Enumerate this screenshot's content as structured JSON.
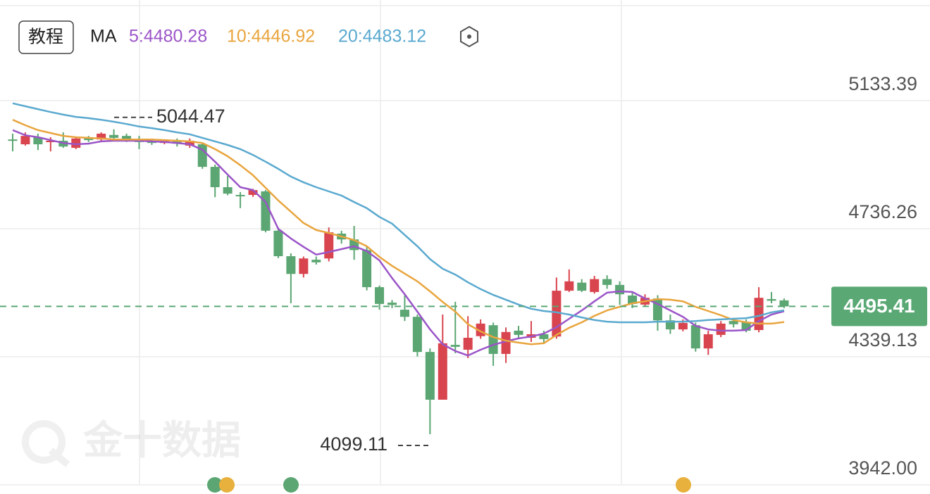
{
  "chart_data": {
    "type": "candlestick",
    "button": "教程",
    "ma_title": "MA",
    "watermark": "金十数据",
    "ylim": [
      3942,
      5445.4
    ],
    "yticks": [
      5133.39,
      4736.26,
      4339.13,
      {
        "value": 3942,
        "label": "3942.00"
      }
    ],
    "grid": true,
    "up_color": "#d9454f",
    "down_color": "#5ba672",
    "last_price": 4495.41,
    "last_price_color": "#5aa874",
    "max_label": 5044.47,
    "min_label": 4099.11,
    "open": [
      5013,
      4998,
      5020,
      5005,
      5009,
      4987,
      5016,
      5013,
      5027,
      5024,
      5011,
      5007,
      5002,
      5007,
      4994,
      4998,
      4928,
      4865,
      4841,
      4841,
      4852,
      4730,
      4651,
      4596,
      4640,
      4644,
      4721,
      4703,
      4670,
      4555,
      4507,
      4485,
      4463,
      4354,
      4206,
      4376,
      4361,
      4403,
      4437,
      4348,
      4420,
      4398,
      4409,
      4402,
      4544,
      4569,
      4540,
      4580,
      4562,
      4529,
      4501,
      4520,
      4452,
      4424,
      4437,
      4365,
      4407,
      4450,
      4446,
      4422,
      4518,
      4514
    ],
    "high": [
      5031,
      5035,
      5031,
      5020,
      5035,
      5020,
      5024,
      5035,
      5044.47,
      5031,
      5024,
      5013,
      5013,
      5016,
      5016,
      5002,
      4935,
      4900,
      4850,
      4860,
      4856,
      4740,
      4660,
      4650,
      4650,
      4740,
      4730,
      4745,
      4680,
      4560,
      4515,
      4530,
      4470,
      4365,
      4470,
      4510,
      4465,
      4455,
      4445,
      4430,
      4435,
      4450,
      4420,
      4585,
      4610,
      4580,
      4590,
      4592,
      4573,
      4540,
      4533,
      4530,
      4470,
      4455,
      4445,
      4420,
      4450,
      4460,
      4455,
      4555,
      4540,
      4520
    ],
    "low": [
      4976,
      4994,
      4980,
      4976,
      4987,
      4983,
      5005,
      5009,
      5009,
      5005,
      4983,
      4996,
      4998,
      4991,
      4987,
      4922,
      4834,
      4840,
      4800,
      4835,
      4725,
      4645,
      4505,
      4585,
      4625,
      4635,
      4690,
      4640,
      4545,
      4485,
      4490,
      4450,
      4340,
      4099.11,
      4206,
      4350,
      4335,
      4395,
      4311,
      4320,
      4395,
      4385,
      4380,
      4395,
      4540,
      4540,
      4535,
      4550,
      4500,
      4490,
      4494,
      4420,
      4410,
      4418,
      4355,
      4345,
      4400,
      4430,
      4415,
      4415,
      4505,
      4490
    ],
    "close": [
      5009,
      5024,
      4998,
      5009,
      4991,
      5016,
      5011,
      5031,
      5018,
      5013,
      5005,
      5002,
      5009,
      5000,
      5009,
      4928,
      4865,
      4845,
      4837,
      4856,
      4730,
      4651,
      4596,
      4644,
      4632,
      4725,
      4703,
      4670,
      4555,
      4503,
      4500,
      4463,
      4354,
      4206,
      4381,
      4370,
      4398,
      4442,
      4348,
      4416,
      4407,
      4409,
      4394,
      4544,
      4573,
      4544,
      4580,
      4562,
      4533,
      4503,
      4522,
      4452,
      4424,
      4444,
      4365,
      4409,
      4442,
      4440,
      4420,
      4522,
      4513,
      4495.41
    ],
    "series": [
      {
        "name": "5:4480.28",
        "color": "#9b55c8",
        "values": [
          5042,
          5026,
          5020,
          5011,
          5002,
          4998,
          5000,
          5007,
          5009,
          5009,
          5009,
          5007,
          5005,
          5002,
          4998,
          4981,
          4944,
          4904,
          4865,
          4856,
          4819,
          4736,
          4706,
          4680,
          4656,
          4664,
          4673,
          4682,
          4667,
          4638,
          4583,
          4533,
          4479,
          4424,
          4378,
          4357,
          4343,
          4361,
          4376,
          4387,
          4396,
          4402,
          4411,
          4431,
          4457,
          4483,
          4511,
          4538,
          4542,
          4540,
          4520,
          4503,
          4483,
          4463,
          4435,
          4424,
          4420,
          4420,
          4422,
          4450,
          4470,
          4480.28
        ]
      },
      {
        "name": "10:4446.92",
        "color": "#e9a53e",
        "values": [
          5074,
          5057,
          5042,
          5033,
          5024,
          5020,
          5018,
          5016,
          5013,
          5013,
          5013,
          5013,
          5011,
          5009,
          5007,
          5002,
          4983,
          4961,
          4933,
          4902,
          4863,
          4824,
          4789,
          4754,
          4732,
          4723,
          4712,
          4701,
          4682,
          4649,
          4621,
          4597,
          4573,
          4542,
          4509,
          4479,
          4440,
          4418,
          4400,
          4389,
          4383,
          4378,
          4381,
          4407,
          4429,
          4446,
          4466,
          4483,
          4494,
          4505,
          4511,
          4518,
          4516,
          4511,
          4494,
          4481,
          4468,
          4453,
          4446,
          4442,
          4442,
          4446.92
        ]
      },
      {
        "name": "20:4483.12",
        "color": "#5aa9cf",
        "values": [
          5125,
          5116,
          5107,
          5098,
          5090,
          5083,
          5079,
          5074,
          5068,
          5061,
          5053,
          5048,
          5042,
          5035,
          5029,
          5018,
          5007,
          4996,
          4983,
          4965,
          4944,
          4922,
          4898,
          4880,
          4865,
          4852,
          4839,
          4819,
          4800,
          4773,
          4752,
          4717,
          4682,
          4642,
          4612,
          4594,
          4570,
          4549,
          4531,
          4516,
          4501,
          4488,
          4481,
          4477,
          4470,
          4461,
          4453,
          4448,
          4446,
          4446,
          4446,
          4448,
          4448,
          4448,
          4450,
          4453,
          4455,
          4457,
          4459,
          4466,
          4477,
          4483.12
        ]
      }
    ]
  }
}
